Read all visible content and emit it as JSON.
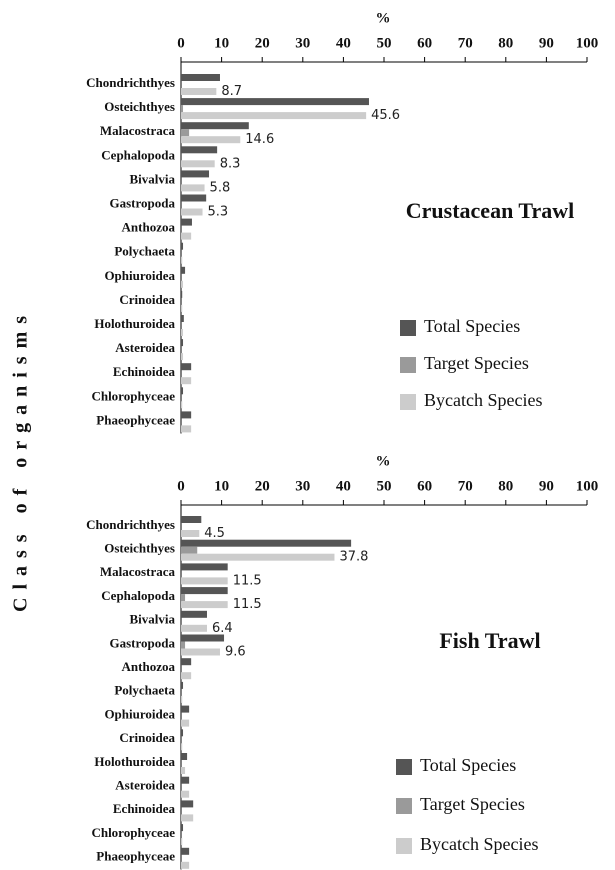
{
  "chart_data": [
    {
      "type": "hbar",
      "title": "Crustacean Trawl",
      "xlabel": "%",
      "ylabel": "Class of organisms",
      "categories": [
        "Chondrichthyes",
        "Osteichthyes",
        "Malacostraca",
        "Cephalopoda",
        "Bivalvia",
        "Gastropoda",
        "Anthozoa",
        "Polychaeta",
        "Ophiuroidea",
        "Crinoidea",
        "Holothuroidea",
        "Asteroidea",
        "Echinoidea",
        "Chlorophyceae",
        "Phaeophyceae"
      ],
      "series": [
        {
          "name": "Total Species",
          "color": "#555555",
          "values": [
            9.6,
            46.3,
            16.7,
            8.9,
            6.9,
            6.2,
            2.7,
            0.5,
            1,
            0.3,
            0.7,
            0.5,
            2.5,
            0.5,
            2.5
          ]
        },
        {
          "name": "Target Species",
          "color": "#9a9a9a",
          "values": [
            0,
            0.5,
            2,
            0,
            0,
            0,
            0,
            0,
            0,
            0,
            0,
            0,
            0,
            0,
            0
          ]
        },
        {
          "name": "Bycatch Species",
          "color": "#cccccc",
          "values": [
            8.7,
            45.6,
            14.6,
            8.3,
            5.8,
            5.3,
            2.5,
            0.3,
            0.5,
            0.3,
            0.5,
            0.5,
            2.5,
            0.3,
            2.5
          ],
          "value_labels": [
            "8.7",
            "45.6",
            "14.6",
            "8.3",
            "5.8",
            "5.3",
            null,
            null,
            null,
            null,
            null,
            null,
            null,
            null,
            null
          ]
        }
      ],
      "xlim": [
        0,
        100
      ],
      "xticks": [
        0,
        10,
        20,
        30,
        40,
        50,
        60,
        70,
        80,
        90,
        100
      ]
    },
    {
      "type": "hbar",
      "title": "Fish Trawl",
      "xlabel": "%",
      "categories": [
        "Chondrichthyes",
        "Osteichthyes",
        "Malacostraca",
        "Cephalopoda",
        "Bivalvia",
        "Gastropoda",
        "Anthozoa",
        "Polychaeta",
        "Ophiuroidea",
        "Crinoidea",
        "Holothuroidea",
        "Asteroidea",
        "Echinoidea",
        "Chlorophyceae",
        "Phaeophyceae"
      ],
      "series": [
        {
          "name": "Total Species",
          "color": "#555555",
          "values": [
            5,
            41.9,
            11.5,
            11.5,
            6.4,
            10.6,
            2.5,
            0.5,
            2,
            0.5,
            1.5,
            2,
            3,
            0.5,
            2
          ]
        },
        {
          "name": "Target Species",
          "color": "#9a9a9a",
          "values": [
            0,
            4,
            0,
            1,
            0,
            1,
            0,
            0,
            0,
            0,
            0,
            0,
            0,
            0,
            0
          ]
        },
        {
          "name": "Bycatch Species",
          "color": "#cccccc",
          "values": [
            4.5,
            37.8,
            11.5,
            11.5,
            6.4,
            9.6,
            2.5,
            0.3,
            2,
            0.3,
            1,
            2,
            3,
            0.3,
            2
          ],
          "value_labels": [
            "4.5",
            "37.8",
            "11.5",
            "11.5",
            "6.4",
            "9.6",
            null,
            null,
            null,
            null,
            null,
            null,
            null,
            null,
            null
          ]
        }
      ],
      "xlim": [
        0,
        100
      ],
      "xticks": [
        0,
        10,
        20,
        30,
        40,
        50,
        60,
        70,
        80,
        90,
        100
      ]
    }
  ]
}
